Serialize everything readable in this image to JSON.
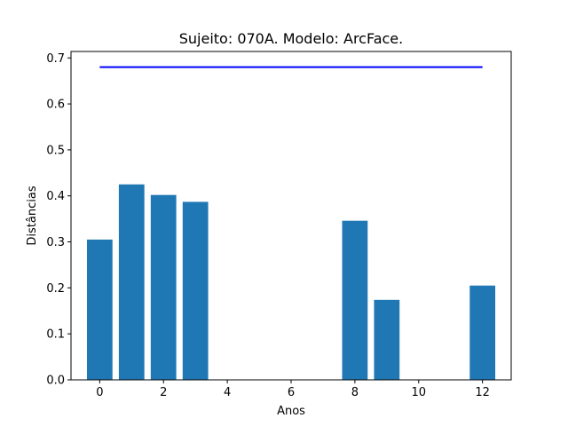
{
  "chart_data": {
    "type": "bar",
    "title": "Sujeito: 070A. Modelo: ArcFace.",
    "xlabel": "Anos",
    "ylabel": "Distâncias",
    "x": [
      0,
      1,
      2,
      3,
      8,
      9,
      12
    ],
    "values": [
      0.305,
      0.425,
      0.402,
      0.387,
      0.346,
      0.174,
      0.205
    ],
    "bar_color": "#1f77b4",
    "threshold": {
      "x": [
        0,
        12
      ],
      "value": 0.68,
      "color": "#0000ff"
    },
    "xlim": [
      -0.9,
      12.9
    ],
    "ylim": [
      0,
      0.714
    ],
    "xticks": [
      0,
      2,
      4,
      6,
      8,
      10,
      12
    ],
    "xtick_labels": [
      "0",
      "2",
      "4",
      "6",
      "8",
      "10",
      "12"
    ],
    "yticks": [
      0.0,
      0.1,
      0.2,
      0.3,
      0.4,
      0.5,
      0.6,
      0.7
    ],
    "ytick_labels": [
      "0.0",
      "0.1",
      "0.2",
      "0.3",
      "0.4",
      "0.5",
      "0.6",
      "0.7"
    ],
    "grid": false,
    "legend": "none"
  }
}
